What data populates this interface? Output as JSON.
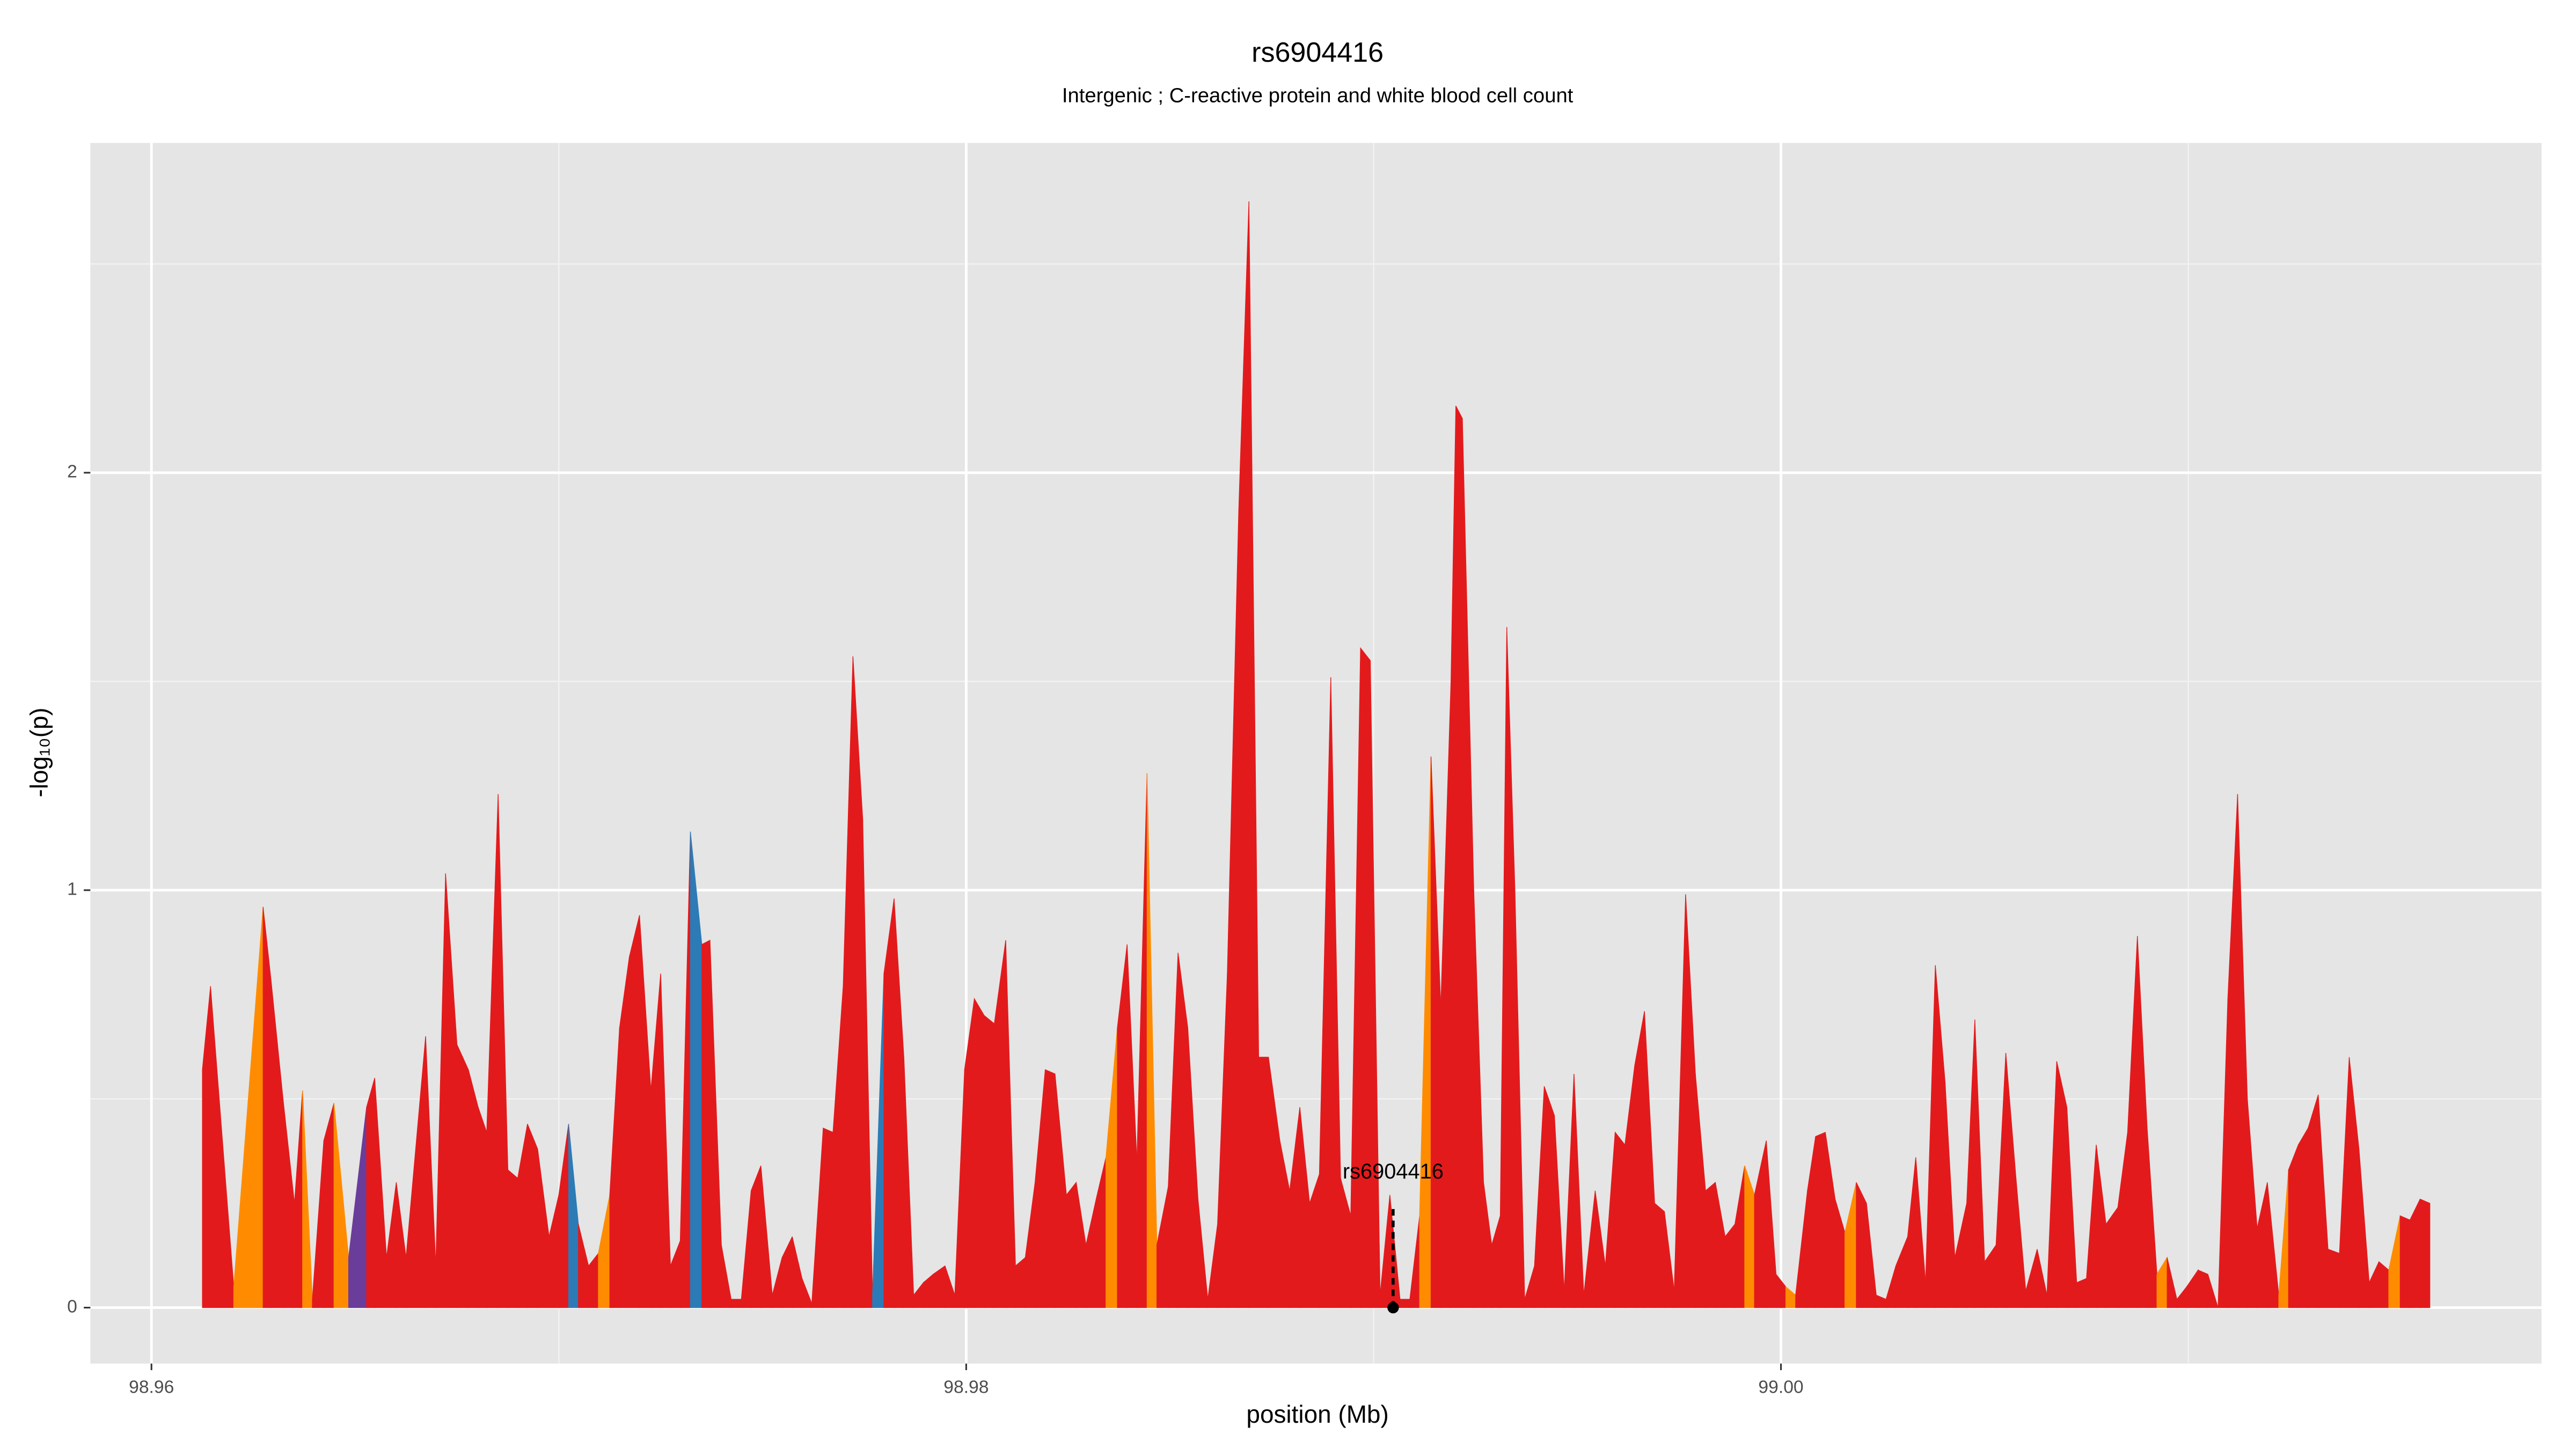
{
  "chart_data": {
    "type": "area",
    "title": "rs6904416",
    "subtitle": "Intergenic ; C-reactive protein and white blood cell count",
    "xlabel": "position (Mb)",
    "ylabel": "-log₁₀(p)",
    "color": "#e31a1c",
    "xlim": [
      98.9585,
      99.01867
    ],
    "ylim": [
      -0.134,
      2.79
    ],
    "xticks": [
      98.96,
      98.98,
      {
        "value": 99,
        "label": "99.00"
      }
    ],
    "yticks": [
      0,
      1,
      2
    ],
    "x_minor_grid": [
      98.97,
      98.99,
      99.01
    ],
    "y_minor_grid": [
      0.5,
      1.5,
      2.5
    ],
    "grid": true,
    "x": [
      98.96125,
      98.96145,
      98.96202,
      98.96274,
      98.96294,
      98.96323,
      98.96351,
      98.96371,
      98.96395,
      98.96423,
      98.96448,
      98.96484,
      98.96528,
      98.96548,
      98.96577,
      98.96601,
      98.96625,
      98.96673,
      98.96698,
      98.96722,
      98.9675,
      98.96778,
      98.96802,
      98.96823,
      98.96851,
      98.96875,
      98.96899,
      98.96923,
      98.96948,
      98.96976,
      98.97,
      98.97024,
      98.97048,
      98.97073,
      98.97097,
      98.97125,
      98.97149,
      98.97173,
      98.97198,
      98.97226,
      98.9725,
      98.97274,
      98.97298,
      98.97323,
      98.97351,
      98.97371,
      98.97399,
      98.97423,
      98.97448,
      98.97472,
      98.97496,
      98.97524,
      98.97548,
      98.97573,
      98.97597,
      98.97621,
      98.97649,
      98.97673,
      98.97698,
      98.97722,
      98.97746,
      98.9777,
      98.97798,
      98.97823,
      98.97847,
      98.97871,
      98.97895,
      98.97919,
      98.97948,
      98.97972,
      98.97996,
      98.9802,
      98.98044,
      98.98069,
      98.98097,
      98.98121,
      98.98145,
      98.98169,
      98.98194,
      98.98218,
      98.98246,
      98.9827,
      98.98294,
      98.98319,
      98.98343,
      98.98371,
      98.98395,
      98.98419,
      98.98444,
      98.98468,
      98.98496,
      98.9852,
      98.98544,
      98.98569,
      98.98593,
      98.98617,
      98.98641,
      98.98669,
      98.98694,
      98.98718,
      98.98742,
      98.9877,
      98.98794,
      98.98819,
      98.98843,
      98.98867,
      98.98895,
      98.98919,
      98.98944,
      98.98968,
      98.98992,
      98.99016,
      98.9904,
      98.99065,
      98.99089,
      98.99113,
      98.99141,
      98.99165,
      98.9919,
      98.99202,
      98.99218,
      98.99246,
      98.9927,
      98.9929,
      98.99311,
      98.99327,
      98.99347,
      98.99371,
      98.99395,
      98.99419,
      98.99444,
      98.99468,
      98.99492,
      98.99516,
      98.99544,
      98.99569,
      98.99593,
      98.99617,
      98.99641,
      98.99665,
      98.9969,
      98.99714,
      98.99738,
      98.99766,
      98.9979,
      98.99815,
      98.99839,
      98.99863,
      98.99887,
      98.99911,
      98.99935,
      98.99964,
      98.99988,
      99.00012,
      99.00036,
      99.00065,
      99.00085,
      99.00109,
      99.00133,
      99.00157,
      99.00185,
      99.0021,
      99.00234,
      99.00258,
      99.00282,
      99.00311,
      99.00331,
      99.00355,
      99.00379,
      99.00403,
      99.00427,
      99.00456,
      99.00476,
      99.005,
      99.00528,
      99.00552,
      99.00577,
      99.00601,
      99.00629,
      99.00653,
      99.00677,
      99.00702,
      99.00726,
      99.0075,
      99.00774,
      99.00798,
      99.00827,
      99.00851,
      99.00875,
      99.00899,
      99.00923,
      99.00948,
      99.00972,
      99.00996,
      99.01024,
      99.01048,
      99.01073,
      99.01097,
      99.01121,
      99.01145,
      99.01169,
      99.01194,
      99.01222,
      99.01246,
      99.0127,
      99.01294,
      99.01319,
      99.01343,
      99.01371,
      99.01395,
      99.01419,
      99.01444,
      99.01468,
      99.01492,
      99.0152,
      99.01544,
      99.01569,
      99.01593
    ],
    "values": [
      0.57,
      0.77,
      0.05,
      0.96,
      0.78,
      0.5,
      0.25,
      0.52,
      0.02,
      0.4,
      0.49,
      0.12,
      0.48,
      0.55,
      0.12,
      0.3,
      0.12,
      0.65,
      0.1,
      1.04,
      0.63,
      0.57,
      0.48,
      0.42,
      1.23,
      0.33,
      0.31,
      0.44,
      0.38,
      0.17,
      0.27,
      0.44,
      0.2,
      0.1,
      0.13,
      0.27,
      0.67,
      0.84,
      0.94,
      0.52,
      0.8,
      0.1,
      0.16,
      1.14,
      0.87,
      0.88,
      0.15,
      0.02,
      0.02,
      0.28,
      0.34,
      0.03,
      0.12,
      0.17,
      0.07,
      0.01,
      0.43,
      0.42,
      0.77,
      1.56,
      1.17,
      0.03,
      0.8,
      0.98,
      0.6,
      0.03,
      0.06,
      0.08,
      0.1,
      0.03,
      0.57,
      0.74,
      0.7,
      0.68,
      0.88,
      0.1,
      0.12,
      0.3,
      0.57,
      0.56,
      0.27,
      0.3,
      0.15,
      0.26,
      0.36,
      0.67,
      0.87,
      0.35,
      1.28,
      0.15,
      0.29,
      0.85,
      0.67,
      0.26,
      0.02,
      0.2,
      0.8,
      1.91,
      2.65,
      0.6,
      0.6,
      0.4,
      0.28,
      0.48,
      0.25,
      0.32,
      1.51,
      0.31,
      0.22,
      1.58,
      1.55,
      0.03,
      0.27,
      0.02,
      0.02,
      0.22,
      1.32,
      0.72,
      1.5,
      2.16,
      2.13,
      1.0,
      0.3,
      0.15,
      0.22,
      1.63,
      1.0,
      0.02,
      0.1,
      0.53,
      0.46,
      0.04,
      0.56,
      0.03,
      0.28,
      0.1,
      0.42,
      0.39,
      0.58,
      0.71,
      0.25,
      0.23,
      0.04,
      0.99,
      0.56,
      0.28,
      0.3,
      0.17,
      0.2,
      0.34,
      0.27,
      0.4,
      0.08,
      0.05,
      0.03,
      0.28,
      0.41,
      0.42,
      0.26,
      0.18,
      0.3,
      0.25,
      0.03,
      0.02,
      0.1,
      0.17,
      0.36,
      0.06,
      0.82,
      0.54,
      0.12,
      0.25,
      0.69,
      0.11,
      0.15,
      0.61,
      0.31,
      0.04,
      0.14,
      0.03,
      0.59,
      0.48,
      0.06,
      0.07,
      0.39,
      0.2,
      0.24,
      0.42,
      0.89,
      0.43,
      0.08,
      0.12,
      0.02,
      0.05,
      0.09,
      0.08,
      0.0,
      0.74,
      1.23,
      0.5,
      0.19,
      0.3,
      0.03,
      0.33,
      0.39,
      0.43,
      0.51,
      0.14,
      0.13,
      0.6,
      0.38,
      0.06,
      0.11,
      0.09,
      0.22,
      0.21,
      0.26,
      0.25
    ],
    "highlights": [
      {
        "x": 98.96202,
        "color": "#ff8c00"
      },
      {
        "x": 98.96371,
        "color": "#ff8c00"
      },
      {
        "x": 98.96448,
        "color": "#ff8c00"
      },
      {
        "x": 98.96484,
        "color": "#6a3d9a"
      },
      {
        "x": 98.97024,
        "color": "#2c7bb6"
      },
      {
        "x": 98.97097,
        "color": "#ff8c00"
      },
      {
        "x": 98.97323,
        "color": "#2c7bb6"
      },
      {
        "x": 98.9777,
        "color": "#2c7bb6"
      },
      {
        "x": 98.98343,
        "color": "#ff8c00"
      },
      {
        "x": 98.98444,
        "color": "#ff8c00"
      },
      {
        "x": 98.99113,
        "color": "#ff8c00"
      },
      {
        "x": 98.99911,
        "color": "#ff8c00"
      },
      {
        "x": 99.00012,
        "color": "#ff8c00"
      },
      {
        "x": 99.00157,
        "color": "#ff8c00"
      },
      {
        "x": 99.00923,
        "color": "#ff8c00"
      },
      {
        "x": 99.01222,
        "color": "#ff8c00"
      },
      {
        "x": 99.01492,
        "color": "#ff8c00"
      }
    ],
    "annotation": {
      "text": "rs6904416",
      "x": 98.99048,
      "y": 0,
      "y_top": 0.24
    }
  }
}
